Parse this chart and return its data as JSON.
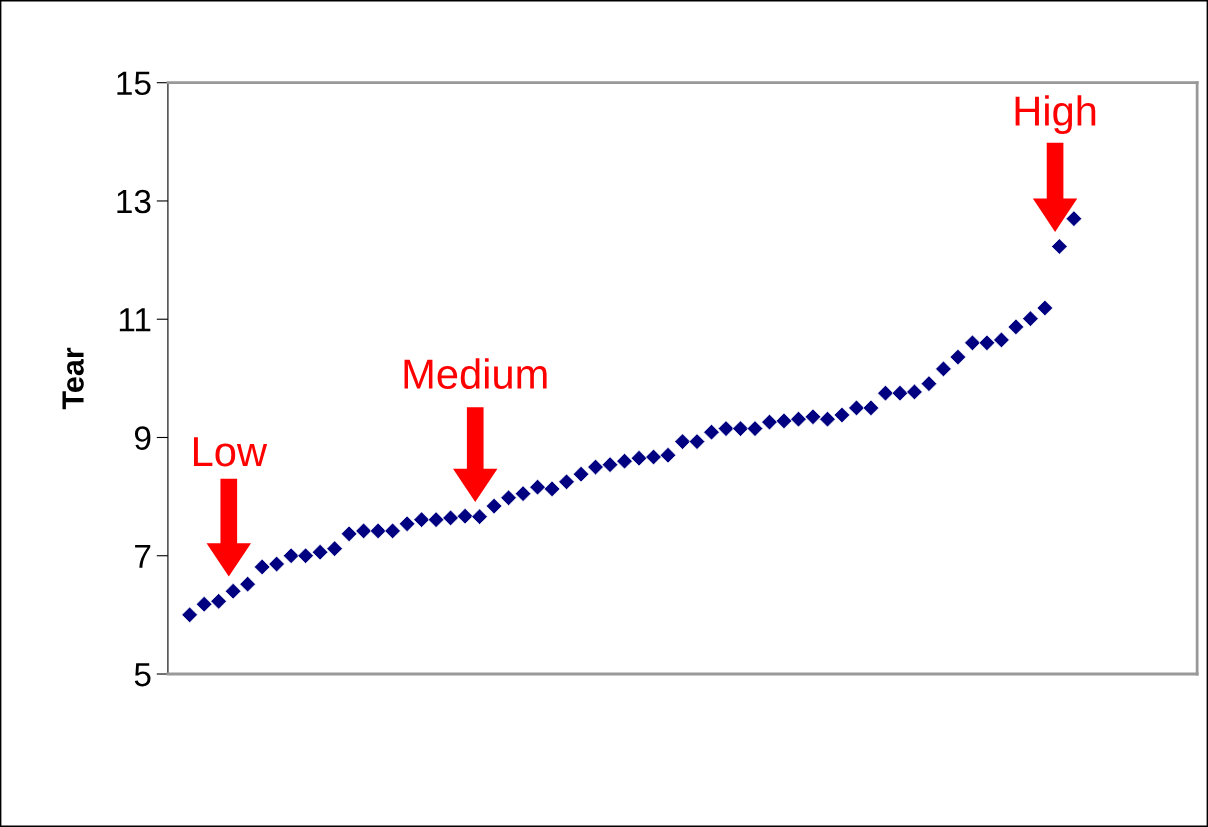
{
  "chart_data": {
    "type": "scatter",
    "ylabel": "Tear",
    "categories": [
      null,
      null,
      null,
      null,
      null,
      null,
      null,
      null,
      null,
      null,
      null,
      null,
      null,
      null,
      null,
      null,
      null,
      null,
      null,
      null,
      null,
      null,
      null,
      null,
      null,
      null,
      null,
      null,
      null,
      null,
      null,
      null,
      null,
      null,
      null,
      null,
      null,
      null,
      null,
      null,
      null,
      null,
      null,
      null,
      null,
      null,
      null,
      null,
      null,
      null,
      null,
      null,
      null,
      null,
      null,
      null,
      null,
      null,
      null,
      null,
      null,
      null,
      null,
      null,
      null,
      null,
      null,
      null,
      null,
      null,
      null
    ],
    "series": [
      {
        "color": "#000080",
        "values": [
          null,
          6.0,
          6.18,
          6.23,
          6.4,
          6.52,
          6.81,
          6.86,
          7.0,
          7.0,
          7.06,
          7.12,
          7.37,
          7.42,
          7.42,
          7.42,
          7.54,
          7.61,
          7.61,
          7.64,
          7.67,
          7.66,
          7.84,
          7.98,
          8.05,
          8.16,
          8.13,
          8.25,
          8.38,
          8.5,
          8.54,
          8.6,
          8.65,
          8.67,
          8.7,
          8.93,
          8.93,
          9.09,
          9.15,
          9.15,
          9.15,
          9.26,
          9.28,
          9.31,
          9.35,
          9.31,
          9.38,
          9.5,
          9.5,
          9.75,
          9.75,
          9.77,
          9.91,
          10.16,
          10.36,
          10.6,
          10.6,
          10.65,
          10.87,
          11.01,
          11.19,
          12.23,
          12.7,
          null,
          null,
          null,
          null,
          null,
          null,
          null,
          null
        ]
      }
    ],
    "ylim": [
      5,
      15
    ],
    "yticks": [
      5,
      7,
      9,
      11,
      13,
      15
    ],
    "marker": "diamond",
    "grid": false,
    "legend": false,
    "annotations": [
      "Low",
      "Medium",
      "High"
    ]
  }
}
